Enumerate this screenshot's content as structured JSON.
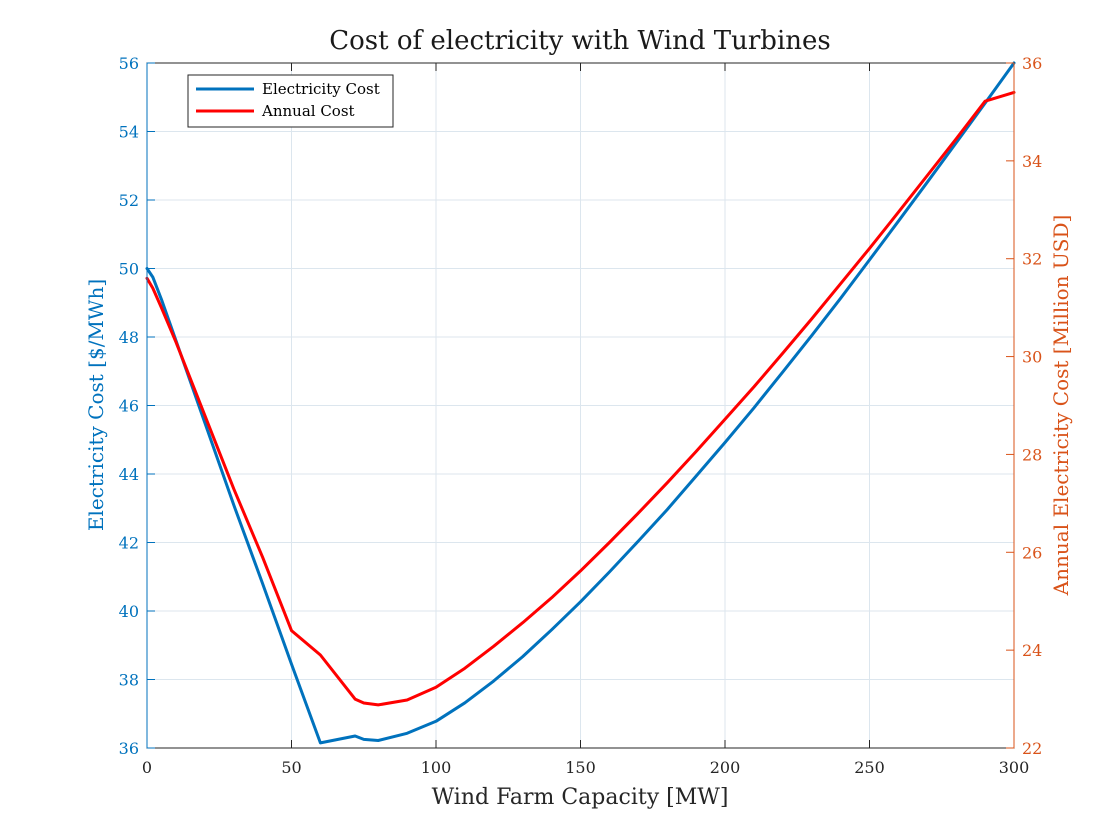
{
  "chart_data": {
    "type": "line",
    "title": "Cost of electricity with Wind Turbines",
    "xlabel": "Wind Farm Capacity [MW]",
    "ylabel_left": "Electricity Cost [$/MWh]",
    "ylabel_right": "Annual Electricity Cost [Million USD]",
    "xlim": [
      0,
      300
    ],
    "ylim_left": [
      36,
      56
    ],
    "ylim_right": [
      22,
      36
    ],
    "x_ticks": [
      "0",
      "50",
      "100",
      "150",
      "200",
      "250",
      "300"
    ],
    "y_ticks_left": [
      "36",
      "38",
      "40",
      "42",
      "44",
      "46",
      "48",
      "50",
      "52",
      "54",
      "56"
    ],
    "y_ticks_right": [
      "22",
      "24",
      "26",
      "28",
      "30",
      "32",
      "34",
      "36"
    ],
    "grid": true,
    "legend_position": "top-left",
    "colors": {
      "left_axis": "#0072BD",
      "right_axis": "#D95319",
      "electricity_cost": "#0072BD",
      "annual_cost": "#FF0000",
      "grid": "#DCE6EE",
      "axes": "#262626"
    },
    "series": [
      {
        "name": "Electricity Cost",
        "axis": "left",
        "x": [
          0,
          2,
          5,
          10,
          20,
          30,
          40,
          50,
          60,
          72,
          75,
          80,
          90,
          100,
          110,
          120,
          130,
          140,
          150,
          160,
          170,
          180,
          190,
          200,
          210,
          220,
          230,
          240,
          250,
          260,
          270,
          280,
          290,
          300
        ],
        "values": [
          50.0,
          49.75,
          49.1,
          47.9,
          45.5,
          43.1,
          40.8,
          38.45,
          36.15,
          36.35,
          36.25,
          36.22,
          36.43,
          36.78,
          37.32,
          37.96,
          38.67,
          39.45,
          40.27,
          41.14,
          42.04,
          42.96,
          43.94,
          44.92,
          45.93,
          46.98,
          48.04,
          49.13,
          50.25,
          51.38,
          52.52,
          53.67,
          54.83,
          56.0
        ]
      },
      {
        "name": "Annual Cost",
        "axis": "right",
        "x": [
          0,
          2,
          5,
          10,
          20,
          30,
          40,
          50,
          60,
          72,
          75,
          80,
          90,
          100,
          110,
          120,
          130,
          140,
          150,
          160,
          170,
          180,
          190,
          200,
          210,
          220,
          230,
          240,
          250,
          260,
          270,
          280,
          290,
          300
        ],
        "values": [
          31.6,
          31.4,
          31.0,
          30.3,
          28.8,
          27.3,
          25.9,
          24.4,
          23.9,
          23.0,
          22.92,
          22.88,
          22.98,
          23.24,
          23.63,
          24.08,
          24.56,
          25.07,
          25.62,
          26.2,
          26.8,
          27.42,
          28.06,
          28.72,
          29.38,
          30.07,
          30.77,
          31.49,
          32.21,
          32.95,
          33.7,
          34.45,
          35.22,
          35.4
        ]
      }
    ]
  }
}
